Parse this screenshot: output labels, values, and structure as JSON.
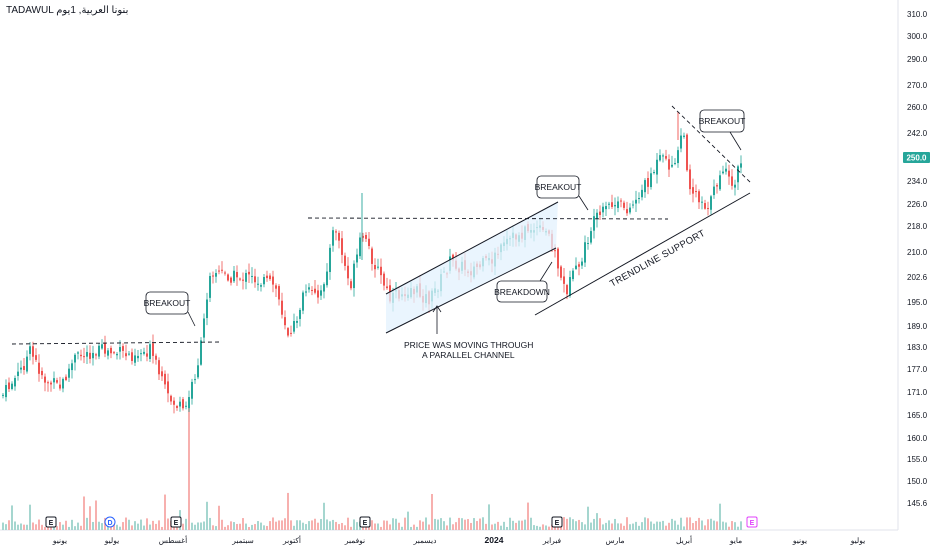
{
  "header": {
    "symbol_line": "TADAWUL بنونا العربية, 1يوم"
  },
  "chart_data": {
    "type": "candlestick",
    "ylim": [
      145.6,
      312
    ],
    "y_ticks": [
      "310.0",
      "300.0",
      "290.0",
      "270.0",
      "260.0",
      "242.0",
      "234.0",
      "226.0",
      "218.0",
      "210.0",
      "202.6",
      "195.0",
      "189.0",
      "183.0",
      "177.0",
      "171.0",
      "165.0",
      "160.0",
      "155.0",
      "150.0",
      "145.6"
    ],
    "last_price": "250.0",
    "x_ticks": [
      "يونيو",
      "يوليو",
      "أغسطس",
      "سبتمبر",
      "أكتوبر",
      "نوفمبر",
      "ديسمبر",
      "2024",
      "فبراير",
      "مارس",
      "أبريل",
      "مايو",
      "يونيو",
      "يوليو"
    ],
    "event_markers": [
      "E",
      "D",
      "E",
      "E",
      "E",
      "E"
    ],
    "annotations": {
      "breakout_1": "BREAKOUT",
      "breakout_2": "BREAKOUT",
      "breakout_3": "BREAKOUT",
      "breakdown": "BREAKDOWN",
      "channel_note_1": "PRICE WAS MOVING THROUGH",
      "channel_note_2": "A PARALLEL CHANNEL",
      "trendline": "TRENDLINE SUPPORT"
    },
    "colors": {
      "up": "#26a69a",
      "down": "#ef5350",
      "last_price_bg": "#26a69a"
    }
  }
}
